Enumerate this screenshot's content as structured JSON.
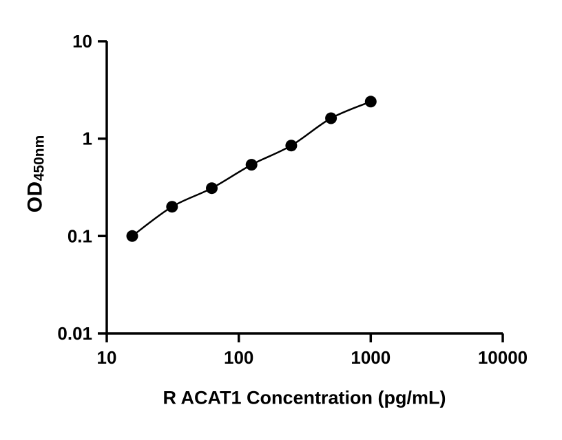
{
  "chart_data": {
    "type": "scatter",
    "title": "",
    "xlabel": "R ACAT1 Concentration (pg/mL)",
    "ylabel_main": "OD",
    "ylabel_sub": "450nm",
    "xscale": "log",
    "yscale": "log",
    "xlim": [
      10,
      10000
    ],
    "ylim": [
      0.01,
      10
    ],
    "x": [
      15.6,
      31.25,
      62.5,
      125,
      250,
      500,
      1000
    ],
    "y": [
      0.1,
      0.2,
      0.31,
      0.54,
      0.85,
      1.62,
      2.4
    ],
    "x_ticks": [
      10,
      100,
      1000,
      10000
    ],
    "x_tick_labels": [
      "10",
      "100",
      "1000",
      "10000"
    ],
    "y_ticks": [
      10,
      1,
      0.1,
      0.01
    ],
    "y_tick_labels": [
      "10",
      "1",
      "0.1",
      "0.01"
    ],
    "grid": false,
    "legend": false,
    "line_color": "#000000",
    "marker_color": "#000000",
    "axis_color": "#000000"
  }
}
